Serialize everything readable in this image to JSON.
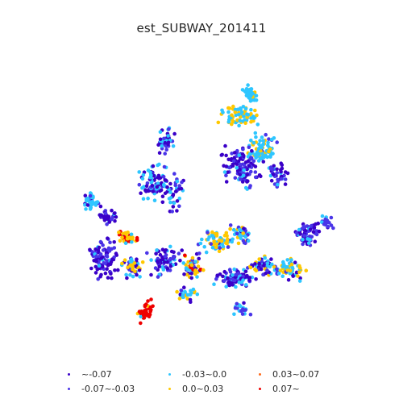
{
  "title": "est_SUBWAY_201411",
  "legend": [
    {
      "label": "~-0.07",
      "color": "#3a00c8",
      "name": "legend-item-lt-neg007"
    },
    {
      "label": "-0.07~-0.03",
      "color": "#4a35e8",
      "name": "legend-item-neg007-neg003"
    },
    {
      "label": "-0.03~0.0",
      "color": "#2ec6ff",
      "name": "legend-item-neg003-0"
    },
    {
      "label": "0.0~0.03",
      "color": "#ffc800",
      "name": "legend-item-0-003"
    },
    {
      "label": "0.03~0.07",
      "color": "#ff6a1a",
      "name": "legend-item-003-007"
    },
    {
      "label": "0.07~",
      "color": "#ee0000",
      "name": "legend-item-gt-007"
    }
  ],
  "class_colors": [
    "#3a00c8",
    "#4a35e8",
    "#2ec6ff",
    "#ffc800",
    "#ff6a1a",
    "#ee0000"
  ]
}
